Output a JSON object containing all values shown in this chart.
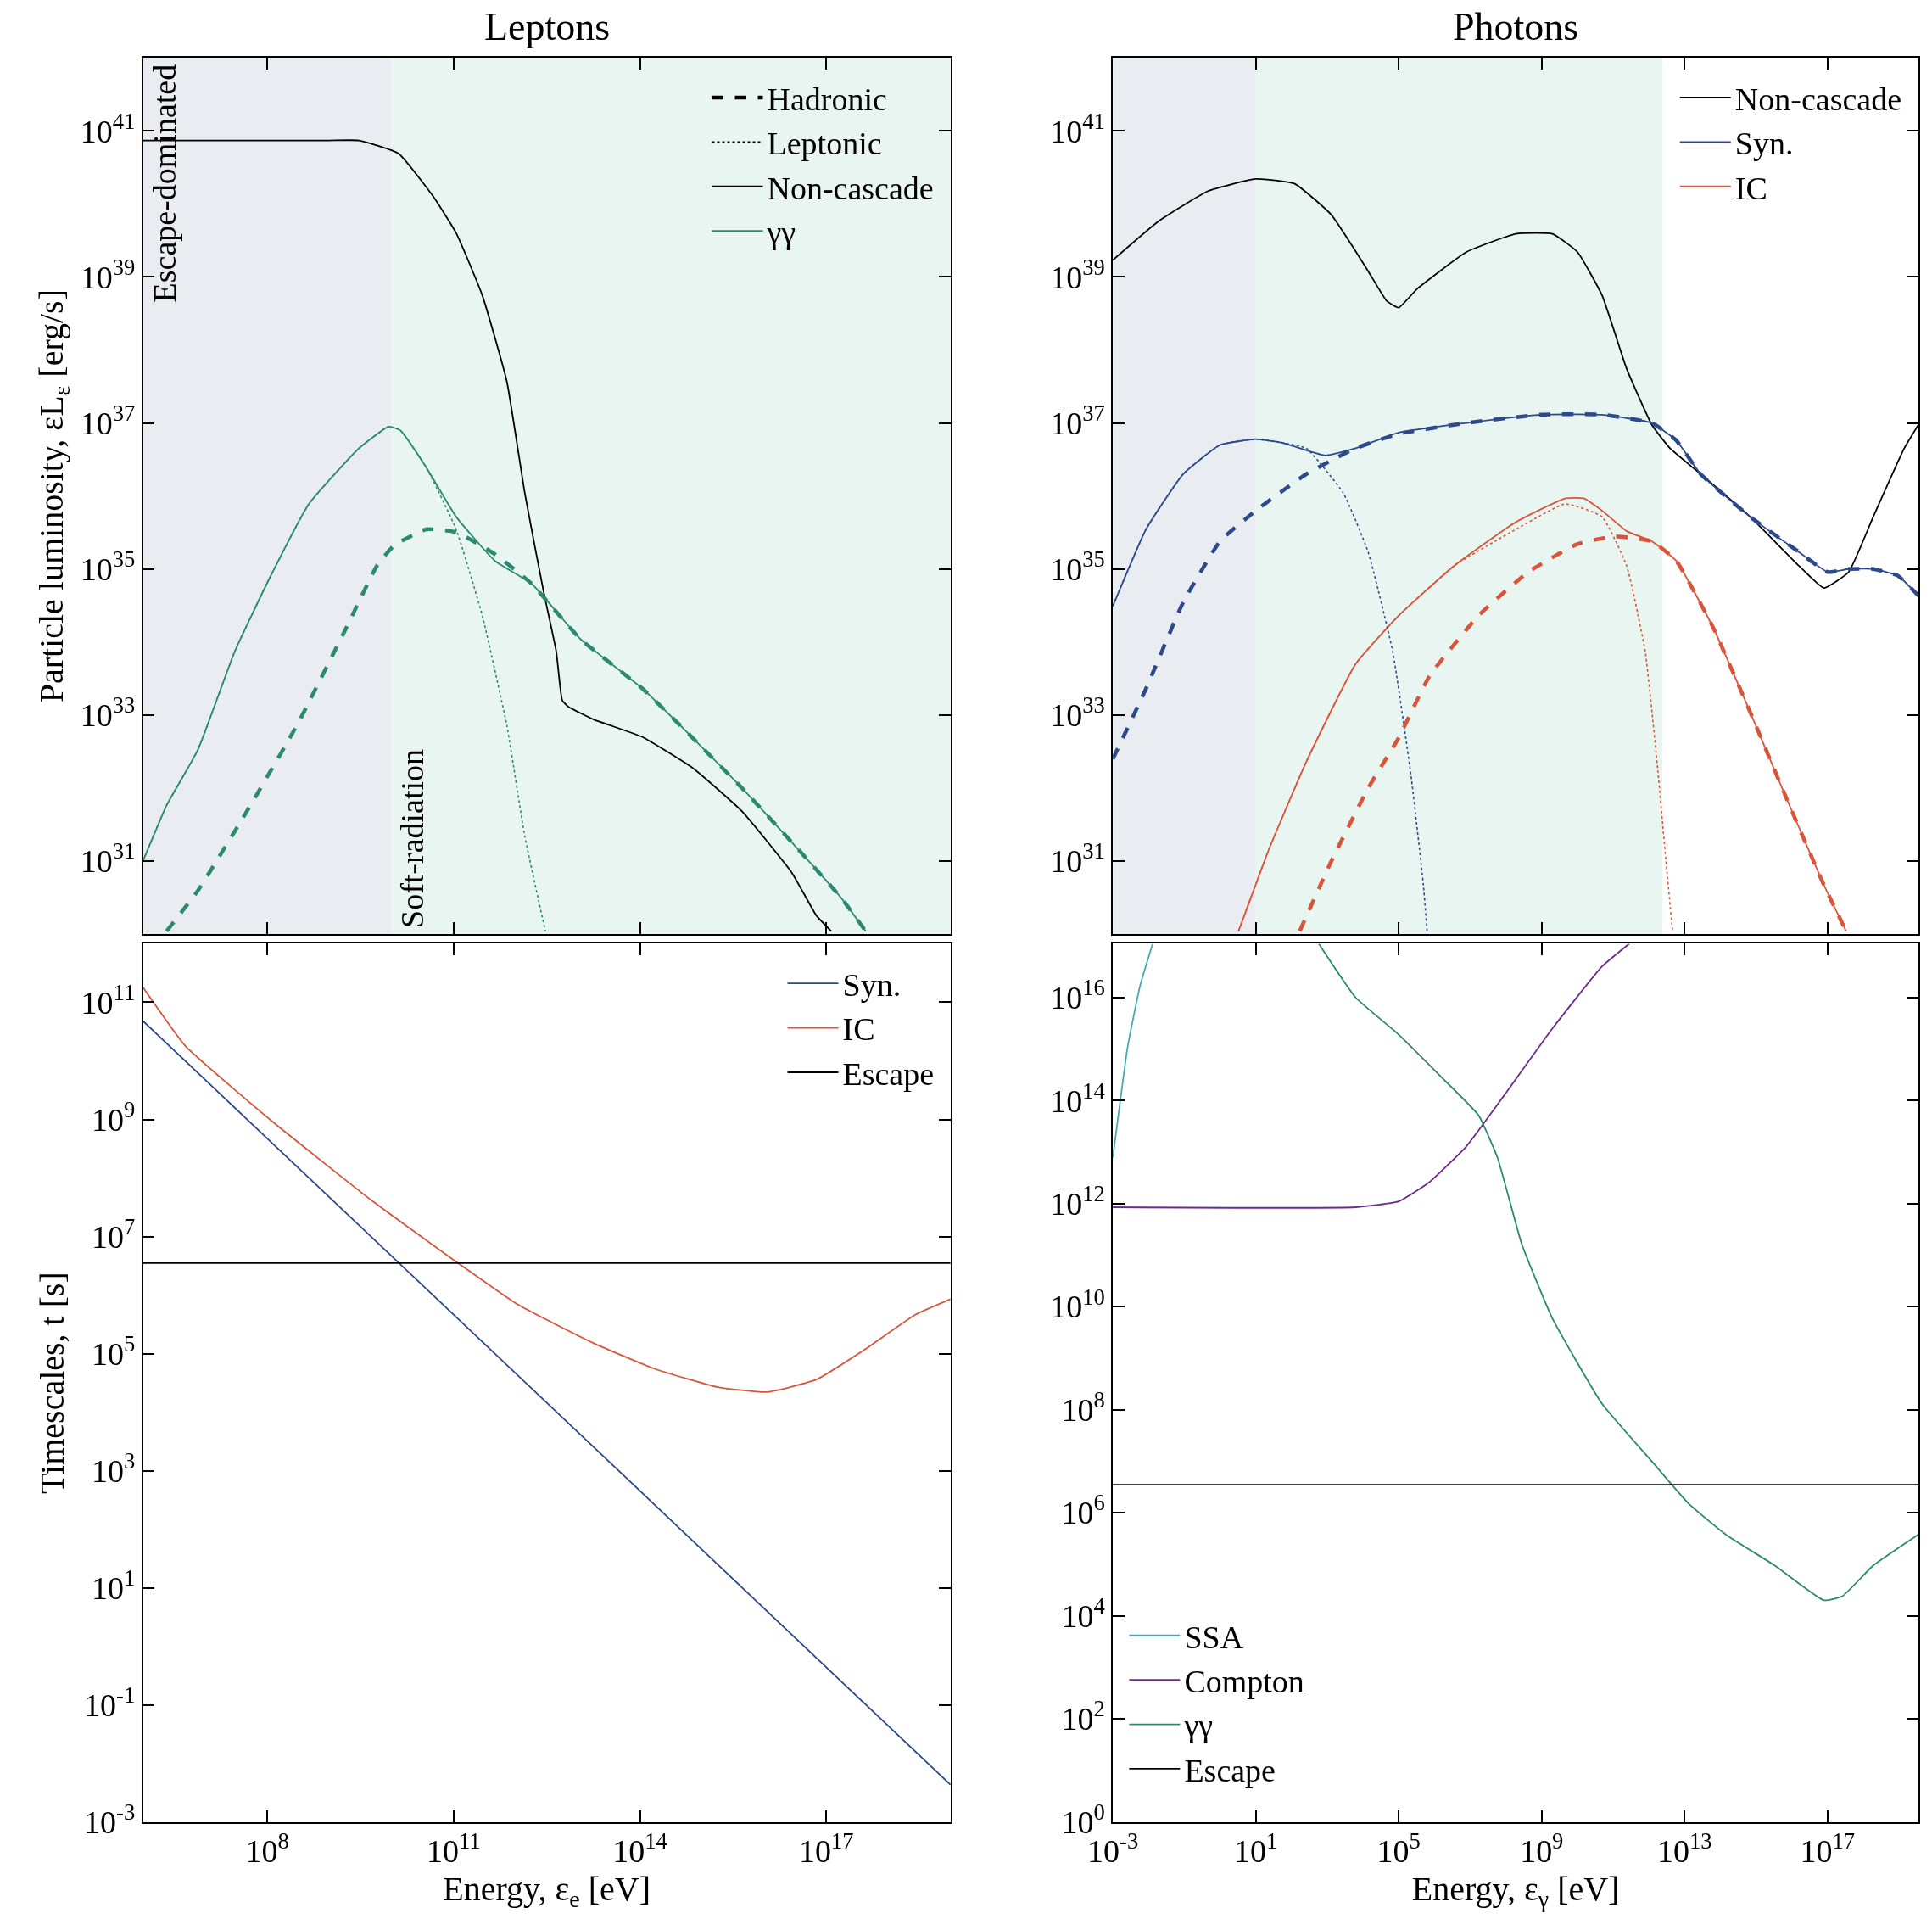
{
  "chart_data": [
    {
      "type": "line",
      "title": "Leptons",
      "ylabel": "Particle luminosity, εL$_{ε}$ [erg/s]",
      "log": "xy",
      "grid": false,
      "legend": "top right",
      "tick_labels": "y",
      "xlim": [
        1000000.0,
        1e+19
      ],
      "ylim": [
        1e+30,
        1e+42
      ],
      "xticks": [
        {
          "value": 100000000.0,
          "label": "10$^{8}$"
        },
        {
          "value": 100000000000.0,
          "label": "10$^{11}$"
        },
        {
          "value": 100000000000000.0,
          "label": "10$^{14}$"
        },
        {
          "value": 1e+17,
          "label": "10$^{17}$"
        }
      ],
      "yticks": [
        {
          "value": 1e+31,
          "label": "10$^{31}$"
        },
        {
          "value": 1e+33,
          "label": "10$^{33}$"
        },
        {
          "value": 1e+35,
          "label": "10$^{35}$"
        },
        {
          "value": 1e+37,
          "label": "10$^{37}$"
        },
        {
          "value": 1e+39,
          "label": "10$^{39}$"
        },
        {
          "value": 1e+41,
          "label": "10$^{41}$"
        }
      ],
      "bands": [
        {
          "axis": "x",
          "from": 1000000.0,
          "to": 10000000000.0,
          "label": "Escape-dominated",
          "color": "#e9edf2"
        },
        {
          "axis": "x",
          "from": 10000000000.0,
          "to": 1e+19,
          "label": "Soft-radiation",
          "color": "#e8f5f1"
        }
      ],
      "series": [
        {
          "name": "Hadronic",
          "color": "#000000",
          "line_style": "dashed"
        },
        {
          "name": "Leptonic",
          "color": "#000000",
          "line_style": "dotted"
        },
        {
          "name": "Non-cascade",
          "color": "#000000",
          "line_style": "solid",
          "x": [
            1000000.0,
            10000000.0,
            100000000.0,
            1000000000.0,
            3000000000.0,
            13000000000.0,
            46000000000.0,
            110000000000.0,
            290000000000.0,
            720000000000.0,
            1400000000000.0,
            2800000000000.0,
            4500000000000.0,
            5600000000000.0,
            7000000000000.0,
            18000000000000.0,
            110000000000000.0,
            700000000000000.0,
            4400000000000000.0,
            2.8e+16,
            6.9e+16,
            1.2e+17
          ],
          "values": [
            7.4e+40,
            7.4e+40,
            7.4e+40,
            7.4e+40,
            7.4e+40,
            4.9e+40,
            1.3e+40,
            4e+39,
            5.6e+38,
            3.7e+37,
            1.1e+36,
            5e+34,
            7.4e+33,
            1.6e+33,
            1.3e+33,
            8.7e+32,
            5e+32,
            1.9e+32,
            4.8e+31,
            6.9e+30,
            1.8e+30,
            1.1e+30
          ]
        },
        {
          "name": "γγ",
          "color": "#2b8a6b",
          "line_style": "solid",
          "x": [
            1000000.0,
            2400000.0,
            7600000.0,
            30000000.0,
            110000000.0,
            470000000.0,
            3000000000.0,
            9000000000.0,
            14000000000.0,
            36000000000.0,
            110000000000.0,
            460000000000.0,
            1800000000000.0,
            11000000000000.0,
            110000000000000.0,
            700000000000000.0,
            4400000000000000.0,
            2.8e+16,
            1.7e+17,
            4.3e+17
          ],
          "values": [
            1e+31,
            5.8e+31,
            3.3e+32,
            7.4e+33,
            7.6e+34,
            7.8e+35,
            4.5e+36,
            8.9e+36,
            7.9e+36,
            2.5e+36,
            5.2e+35,
            1.3e+35,
            6.3e+34,
            1.1e+34,
            2.3e+33,
            4.9e+32,
            1e+32,
            1.8e+31,
            3.2e+30,
            1.1e+30
          ]
        },
        {
          "color": "#2b8a6b",
          "line_style": "dashed",
          "x": [
            2400000.0,
            7600000.0,
            47000000.0,
            300000000.0,
            1900000000.0,
            5800000000.0,
            11000000000.0,
            36000000000.0,
            110000000000.0,
            460000000000.0,
            1800000000000.0,
            11000000000000.0,
            110000000000000.0,
            700000000000000.0,
            4400000000000000.0,
            2.8e+16,
            1.7e+17,
            4.3e+17
          ],
          "values": [
            1.1e+30,
            3.9e+30,
            4.8e+31,
            7.2e+32,
            1.6e+34,
            1.1e+35,
            2.1e+35,
            3.5e+35,
            3.2e+35,
            1.6e+35,
            6.3e+34,
            1.1e+34,
            2.3e+33,
            4.9e+32,
            1e+32,
            1.8e+31,
            3.2e+30,
            1.1e+30
          ]
        },
        {
          "color": "#2b8a6b",
          "line_style": "dotted",
          "x": [
            1000000.0,
            2400000.0,
            7600000.0,
            30000000.0,
            110000000.0,
            470000000.0,
            3000000000.0,
            9000000000.0,
            14000000000.0,
            36000000000.0,
            110000000000.0,
            290000000000.0,
            720000000000.0,
            1400000000000.0,
            3000000000000.0
          ],
          "values": [
            1e+31,
            5.8e+31,
            3.3e+32,
            7.4e+33,
            7.6e+34,
            7.8e+35,
            4.5e+36,
            8.9e+36,
            7.9e+36,
            2.5e+36,
            3.5e+35,
            2.3e+34,
            7.2e+32,
            2.2e+31,
            1.1e+30
          ]
        }
      ]
    },
    {
      "type": "line",
      "title": "Photons",
      "log": "xy",
      "grid": false,
      "legend": "top right",
      "tick_labels": "y",
      "xlim": [
        0.001,
        3.5e+19
      ],
      "ylim": [
        1e+30,
        1e+42
      ],
      "xticks": [
        {
          "value": 0.001,
          "label": "10$^{-3}$"
        },
        {
          "value": 10.0,
          "label": "10$^{1}$"
        },
        {
          "value": 100000.0,
          "label": "10$^{5}$"
        },
        {
          "value": 1000000000.0,
          "label": "10$^{9}$"
        },
        {
          "value": 10000000000000.0,
          "label": "10$^{13}$"
        },
        {
          "value": 1e+17,
          "label": "10$^{17}$"
        }
      ],
      "yticks": [
        {
          "value": 1e+31,
          "label": "10$^{31}$"
        },
        {
          "value": 1e+33,
          "label": "10$^{33}$"
        },
        {
          "value": 1e+35,
          "label": "10$^{35}$"
        },
        {
          "value": 1e+37,
          "label": "10$^{37}$"
        },
        {
          "value": 1e+39,
          "label": "10$^{39}$"
        },
        {
          "value": 1e+41,
          "label": "10$^{41}$"
        }
      ],
      "bands": [
        {
          "axis": "x",
          "from": 0.001,
          "to": 10.0,
          "color": "#e9edf2"
        },
        {
          "axis": "x",
          "from": 10.0,
          "to": 2400000000000.0,
          "color": "#e8f5f1"
        }
      ],
      "series": [
        {
          "name": "Non-cascade",
          "color": "#000000",
          "line_style": "solid",
          "x": [
            0.001,
            0.019,
            0.46,
            10,
            120.0,
            1300.0,
            14000.0,
            46000.0,
            100000.0,
            330000.0,
            7900000.0,
            190000000.0,
            2000000000.0,
            10000000000.0,
            49000000000.0,
            240000000000.0,
            1200000000000.0,
            3900000000000.0,
            28000000000000.0,
            680000000000000.0,
            1.6e+16,
            7.9e+16,
            3.9e+17,
            1.9e+18,
            1.4e+19,
            3.5e+19
          ],
          "values": [
            1.7e+39,
            5.8e+39,
            1.5e+40,
            2.2e+40,
            1.9e+40,
            7.1e+39,
            1.2e+39,
            4.7e+38,
            3.8e+38,
            6.9e+38,
            2.2e+39,
            3.9e+39,
            3.9e+39,
            2.2e+39,
            5.6e+38,
            5.5e+37,
            9.5e+36,
            4.5e+36,
            2e+36,
            5.2e+35,
            1.1e+35,
            5.5e+34,
            9.1e+34,
            5.2e+35,
            4.5e+36,
            9.5e+36
          ]
        },
        {
          "name": "Syn.",
          "color": "#2c4a8a",
          "line_style": "solid",
          "x": [
            0.001,
            0.0085,
            0.093,
            1,
            10,
            52,
            850.0,
            6200.0,
            100000.0,
            7900000.0,
            930000000.0,
            49000000000.0,
            1200000000000.0,
            5800000000000.0,
            28000000000000.0,
            680000000000000.0,
            1.6e+16,
            1e+17,
            3.9e+17,
            1.9e+18,
            9.3e+18,
            3.5e+19
          ],
          "values": [
            3.1e+34,
            3.5e+35,
            2e+36,
            5e+36,
            6e+36,
            5.4e+36,
            3.6e+36,
            4.5e+36,
            7.4e+36,
            1e+37,
            1.3e+37,
            1.3e+37,
            1e+37,
            5.8e+36,
            2e+36,
            5.2e+35,
            1.7e+35,
            9.1e+34,
            1e+35,
            1e+35,
            8.1e+34,
            4.3e+34
          ]
        },
        {
          "name": "IC",
          "color": "#d9553a",
          "line_style": "solid",
          "x": [
            3.3,
            24,
            260.0,
            6200.0,
            100000.0,
            3500000.0,
            190000000.0,
            4600000000.0,
            15000000000.0,
            49000000000.0,
            240000000000.0,
            1200000000000.0,
            5800000000000.0,
            62000000000000.0,
            680000000000000.0,
            7200000000000000.0,
            7.9e+16,
            3.3e+17
          ],
          "values": [
            1.1e+30,
            1.5e+31,
            2.3e+32,
            5e+33,
            2.3e+34,
            1.1e+35,
            4.4e+35,
            9.3e+35,
            9.3e+35,
            6.3e+35,
            3.3e+35,
            2.4e+35,
            1.3e+35,
            1.6e+34,
            1.1e+33,
            7.1e+31,
            4.7e+30,
            1.1e+30
          ]
        },
        {
          "color": "#2c4a8a",
          "line_style": "dashed",
          "x": [
            0.001,
            0.0085,
            0.093,
            1,
            10,
            260.0,
            6200.0,
            100000.0,
            7900000.0,
            930000000.0,
            49000000000.0,
            1200000000000.0,
            5800000000000.0,
            28000000000000.0,
            680000000000000.0,
            1.6e+16,
            1e+17,
            3.9e+17,
            1.9e+18,
            9.3e+18,
            3.5e+19
          ],
          "values": [
            2.5e+32,
            2.3e+33,
            3.5e+34,
            2.4e+35,
            6.3e+35,
            2e+36,
            4.5e+36,
            7.1e+36,
            1e+37,
            1.3e+37,
            1.3e+37,
            1e+37,
            5.8e+36,
            2e+36,
            5.2e+35,
            1.7e+35,
            9.1e+34,
            1e+35,
            1e+35,
            8.1e+34,
            4.3e+34
          ]
        },
        {
          "color": "#2c4a8a",
          "line_style": "dotted",
          "x": [
            0.001,
            0.0085,
            0.093,
            1,
            10,
            52,
            260.0,
            2800.0,
            14000.0,
            68000.0,
            220000.0,
            490000.0,
            620000.0
          ],
          "values": [
            3.1e+34,
            3.5e+35,
            2e+36,
            5e+36,
            6e+36,
            5.4e+36,
            4.5e+36,
            1.1e+36,
            1.7e+35,
            7.4e+33,
            1.5e+32,
            4.7e+30,
            1.1e+30
          ]
        },
        {
          "color": "#d9553a",
          "line_style": "dashed",
          "x": [
            170.0,
            1300.0,
            14000.0,
            100000.0,
            720000.0,
            17000000.0,
            420000000.0,
            10000000000.0,
            110000000000.0,
            1200000000000.0,
            5800000000000.0,
            62000000000000.0,
            680000000000000.0,
            7200000000000000.0,
            7.9e+16,
            3.3e+17
          ],
          "values": [
            1.1e+30,
            1e+31,
            1e+32,
            4.9e+32,
            3.4e+33,
            2.3e+34,
            9.1e+34,
            2.2e+35,
            2.8e+35,
            2.4e+35,
            1.3e+35,
            1.6e+34,
            1.1e+33,
            7.1e+31,
            4.7e+30,
            1.1e+30
          ]
        },
        {
          "color": "#d9553a",
          "line_style": "dotted",
          "x": [
            3.3,
            24,
            260.0,
            6200.0,
            100000.0,
            3500000.0,
            190000000.0,
            4600000000.0,
            49000000000.0,
            240000000000.0,
            790000000000.0,
            1700000000000.0,
            3000000000000.0,
            4600000000000.0
          ],
          "values": [
            1.1e+30,
            1.5e+31,
            2.3e+32,
            5e+33,
            2.3e+34,
            1.1e+35,
            3.5e+35,
            7.8e+35,
            5.2e+35,
            1.1e+35,
            7.4e+33,
            2.2e+32,
            1e+31,
            1.1e+30
          ]
        }
      ]
    },
    {
      "type": "line",
      "xlabel": "Energy, ε$_{e}$ [eV]",
      "ylabel": "Timescales, t [s]",
      "log": "xy",
      "grid": false,
      "legend": "top right",
      "xlim": [
        1000000.0,
        1e+19
      ],
      "ylim": [
        0.001,
        1000000000000.0
      ],
      "xticks": [
        {
          "value": 100000000.0,
          "label": "10$^{8}$"
        },
        {
          "value": 100000000000.0,
          "label": "10$^{11}$"
        },
        {
          "value": 100000000000000.0,
          "label": "10$^{14}$"
        },
        {
          "value": 1e+17,
          "label": "10$^{17}$"
        }
      ],
      "yticks": [
        {
          "value": 0.001,
          "label": "10$^{-3}$"
        },
        {
          "value": 0.1,
          "label": "10$^{-1}$"
        },
        {
          "value": 10.0,
          "label": "10$^{1}$"
        },
        {
          "value": 1000.0,
          "label": "10$^{3}$"
        },
        {
          "value": 100000.0,
          "label": "10$^{5}$"
        },
        {
          "value": 10000000.0,
          "label": "10$^{7}$"
        },
        {
          "value": 1000000000.0,
          "label": "10$^{9}$"
        },
        {
          "value": 100000000000.0,
          "label": "10$^{11}$"
        }
      ],
      "series": [
        {
          "name": "Syn.",
          "color": "#2c4a8a",
          "line_style": "solid",
          "x": [
            1000000.0,
            1000000000000.0,
            1e+19
          ],
          "values": [
            48000000000.0,
            46000.0,
            0.0043
          ]
        },
        {
          "name": "IC",
          "color": "#d9553a",
          "line_style": "solid",
          "x": [
            1000000.0,
            4800000.0,
            110000000.0,
            4700000000.0,
            110000000000.0,
            1100000000000.0,
            18000000000000.0,
            180000000000000.0,
            1700000000000000.0,
            1.1e+16,
            6.9e+16,
            4.3e+17,
            2.7e+18,
            1e+19
          ],
          "values": [
            180000000000.0,
            18000000000.0,
            1000000000.0,
            42000000.0,
            3700000.0,
            680000.0,
            150000.0,
            54000.0,
            27000.0,
            22000.0,
            36000.0,
            120000.0,
            460000.0,
            850000.0
          ]
        },
        {
          "name": "Escape",
          "color": "#000000",
          "line_style": "solid",
          "x": [
            1000000.0,
            1e+19
          ],
          "values": [
            3500000.0,
            3500000.0
          ]
        }
      ]
    },
    {
      "type": "line",
      "xlabel": "Energy, ε$_{γ}$ [eV]",
      "log": "xy",
      "grid": false,
      "legend": "bottom left",
      "xlim": [
        0.001,
        3.5e+19
      ],
      "ylim": [
        1,
        1.1e+17
      ],
      "xticks": [
        {
          "value": 0.001,
          "label": "10$^{-3}$"
        },
        {
          "value": 10.0,
          "label": "10$^{1}$"
        },
        {
          "value": 100000.0,
          "label": "10$^{5}$"
        },
        {
          "value": 1000000000.0,
          "label": "10$^{9}$"
        },
        {
          "value": 10000000000000.0,
          "label": "10$^{13}$"
        },
        {
          "value": 1e+17,
          "label": "10$^{17}$"
        }
      ],
      "yticks": [
        {
          "value": 1,
          "label": "10$^{0}$"
        },
        {
          "value": 100.0,
          "label": "10$^{2}$"
        },
        {
          "value": 10000.0,
          "label": "10$^{4}$"
        },
        {
          "value": 1000000.0,
          "label": "10$^{6}$"
        },
        {
          "value": 100000000.0,
          "label": "10$^{8}$"
        },
        {
          "value": 10000000000.0,
          "label": "10$^{10}$"
        },
        {
          "value": 1000000000000.0,
          "label": "10$^{12}$"
        },
        {
          "value": 100000000000000.0,
          "label": "10$^{14}$"
        },
        {
          "value": 1e+16,
          "label": "10$^{16}$"
        }
      ],
      "series": [
        {
          "name": "SSA",
          "color": "#45aab0",
          "line_style": "solid",
          "x": [
            0.001,
            0.0026,
            0.0058,
            0.013
          ],
          "values": [
            7800000000000.0,
            1100000000000000.0,
            1.7e+16,
            1.1e+17
          ]
        },
        {
          "name": "Compton",
          "color": "#6b2a90",
          "line_style": "solid",
          "x": [
            0.001,
            6200.0,
            100000.0,
            720000.0,
            7900000.0,
            85000000.0,
            2000000000.0,
            49000000000.0,
            280000000000.0
          ],
          "values": [
            850000000000.0,
            850000000000.0,
            1100000000000.0,
            2600000000000.0,
            13000000000000.0,
            120000000000000.0,
            2500000000000000.0,
            4e+16,
            1.1e+17
          ]
        },
        {
          "name": "γγ",
          "color": "#2b8a6b",
          "line_style": "solid",
          "x": [
            580.0,
            6200.0,
            100000.0,
            1600000.0,
            17000000.0,
            58000000.0,
            280000000.0,
            2000000000.0,
            49000000000.0,
            1200000000000.0,
            13000000000000.0,
            140000000000000.0,
            3300000000000000.0,
            7.9e+16,
            2.6e+17,
            1.9e+18,
            3.5e+19
          ],
          "values": [
            1.1e+17,
            1e+16,
            1900000000000000.0,
            280000000000000.0,
            52000000000000.0,
            7800000000000.0,
            160000000000.0,
            5900000000.0,
            130000000.0,
            10000000.0,
            1500000.0,
            380000.0,
            95000.0,
            20000.0,
            24000.0,
            95000.0,
            380000.0
          ]
        },
        {
          "name": "Escape",
          "color": "#000000",
          "line_style": "solid",
          "x": [
            0.001,
            3.5e+19
          ],
          "values": [
            3500000.0,
            3500000.0
          ]
        }
      ]
    }
  ]
}
